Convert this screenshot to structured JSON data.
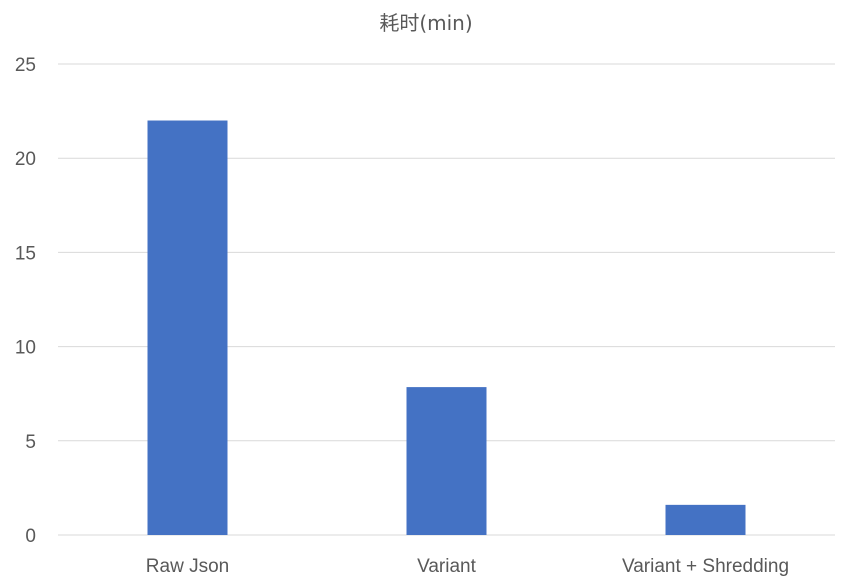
{
  "chart_data": {
    "type": "bar",
    "title": "耗时(min)",
    "xlabel": "",
    "ylabel": "",
    "categories": [
      "Raw Json",
      "Variant",
      "Variant + Shredding"
    ],
    "series": [
      {
        "values": [
          22,
          7.85,
          1.6
        ]
      }
    ],
    "ylim": [
      0,
      25
    ],
    "yticks": [
      0,
      5,
      10,
      15,
      20,
      25
    ],
    "grid": true,
    "legend": "none",
    "bar_color": "#4472C4"
  }
}
